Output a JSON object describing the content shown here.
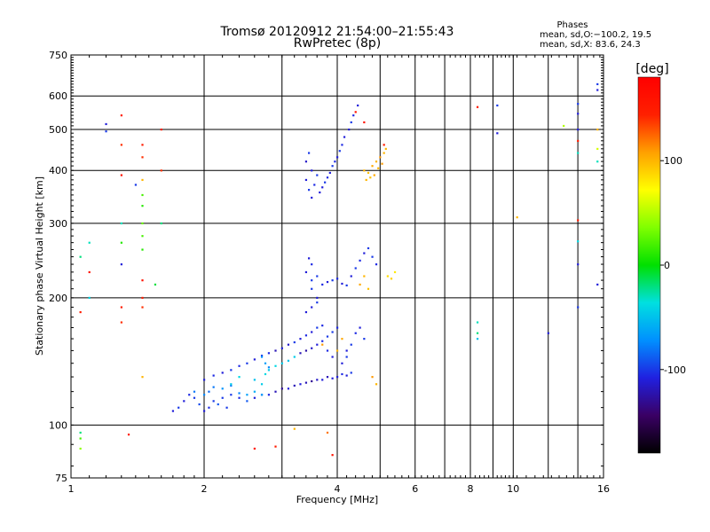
{
  "chart_data": {
    "type": "scatter",
    "title": "Tromsø 20120912 21:54:00–21:55:43",
    "subtitle": "RwPretec (8p)",
    "stats": {
      "heading": "Phases",
      "line1": "mean, sd,O:−100.2, 19.5",
      "line2": "mean, sd,X:  83.6, 24.3"
    },
    "xlabel": "Frequency [MHz]",
    "ylabel": "Stationary phase Virtual Height [km]",
    "x_scale": "log",
    "y_scale": "log",
    "xlim": [
      1,
      16
    ],
    "ylim": [
      75,
      750
    ],
    "x_ticks": [
      1,
      2,
      4,
      6,
      8,
      10,
      16
    ],
    "x_minor_ticks": [
      3,
      5,
      7,
      9,
      12,
      14
    ],
    "y_ticks": [
      75,
      100,
      200,
      300,
      400,
      500,
      600,
      750
    ],
    "grid": true,
    "colorbar": {
      "label": "[deg]",
      "min": -180,
      "max": 180,
      "ticks": [
        100,
        0,
        -100
      ],
      "colors": [
        "#000000",
        "#3a0064",
        "#2020e0",
        "#0090ff",
        "#00e0e0",
        "#00e000",
        "#80ff00",
        "#ffff00",
        "#ffa000",
        "#ff2000",
        "#ff0000"
      ]
    },
    "series": [
      {
        "points": [
          [
            1.7,
            108,
            -110
          ],
          [
            1.75,
            110,
            -100
          ],
          [
            1.8,
            114,
            -110
          ],
          [
            1.85,
            118,
            -105
          ],
          [
            1.9,
            116,
            -100
          ],
          [
            1.95,
            112,
            -95
          ],
          [
            2.0,
            108,
            -110
          ],
          [
            2.05,
            110,
            -105
          ],
          [
            2.1,
            114,
            -100
          ],
          [
            2.15,
            112,
            -90
          ],
          [
            2.2,
            116,
            -100
          ],
          [
            2.25,
            110,
            -100
          ],
          [
            2.3,
            118,
            -100
          ],
          [
            2.4,
            116,
            -105
          ],
          [
            2.5,
            114,
            -90
          ],
          [
            2.6,
            116,
            -110
          ],
          [
            2.7,
            118,
            -100
          ],
          [
            2.8,
            118,
            -105
          ],
          [
            2.9,
            120,
            -120
          ],
          [
            3.0,
            122,
            -130
          ],
          [
            3.1,
            122,
            -110
          ],
          [
            3.2,
            124,
            -120
          ],
          [
            3.3,
            125,
            -110
          ],
          [
            3.4,
            126,
            -120
          ],
          [
            3.5,
            127,
            -130
          ],
          [
            3.6,
            128,
            -115
          ],
          [
            3.7,
            128,
            -110
          ],
          [
            3.8,
            130,
            -120
          ],
          [
            3.9,
            129,
            -110
          ],
          [
            4.0,
            130,
            -110
          ],
          [
            4.1,
            132,
            -105
          ],
          [
            4.2,
            131,
            -110
          ],
          [
            4.3,
            133,
            -100
          ],
          [
            1.9,
            120,
            -80
          ],
          [
            2.0,
            118,
            -75
          ],
          [
            2.05,
            120,
            -85
          ],
          [
            2.1,
            123,
            -80
          ],
          [
            2.2,
            122,
            -70
          ],
          [
            2.3,
            124,
            -80
          ],
          [
            2.4,
            119,
            -75
          ],
          [
            2.5,
            118,
            -65
          ],
          [
            2.6,
            120,
            -60
          ],
          [
            2.7,
            118,
            -65
          ],
          [
            2.0,
            128,
            -110
          ],
          [
            2.1,
            131,
            -105
          ],
          [
            2.2,
            133,
            -110
          ],
          [
            2.3,
            135,
            -100
          ],
          [
            2.4,
            138,
            -105
          ],
          [
            2.5,
            140,
            -100
          ],
          [
            2.6,
            143,
            -110
          ],
          [
            2.7,
            146,
            -100
          ],
          [
            2.8,
            148,
            -105
          ],
          [
            2.9,
            150,
            -120
          ],
          [
            3.0,
            152,
            -110
          ],
          [
            3.1,
            155,
            -115
          ],
          [
            3.2,
            157,
            -100
          ],
          [
            3.3,
            160,
            -110
          ],
          [
            3.4,
            163,
            -105
          ],
          [
            3.5,
            166,
            -110
          ],
          [
            3.6,
            170,
            -100
          ],
          [
            3.7,
            172,
            -105
          ],
          [
            2.7,
            145,
            -70
          ],
          [
            2.75,
            140,
            -65
          ],
          [
            2.8,
            137,
            -75
          ],
          [
            3.3,
            148,
            -120
          ],
          [
            3.4,
            150,
            -125
          ],
          [
            3.5,
            152,
            -115
          ],
          [
            3.6,
            155,
            -110
          ],
          [
            3.7,
            158,
            -105
          ],
          [
            3.8,
            162,
            -100
          ],
          [
            3.9,
            166,
            -100
          ],
          [
            4.0,
            170,
            -105
          ],
          [
            3.4,
            185,
            -110
          ],
          [
            3.5,
            190,
            -110
          ],
          [
            3.6,
            195,
            -100
          ],
          [
            3.6,
            200,
            -110
          ],
          [
            3.5,
            210,
            -100
          ],
          [
            3.5,
            220,
            -100
          ],
          [
            3.4,
            230,
            -110
          ],
          [
            3.5,
            240,
            -105
          ],
          [
            3.45,
            248,
            -110
          ],
          [
            3.6,
            225,
            -100
          ],
          [
            3.7,
            215,
            -105
          ],
          [
            3.8,
            218,
            -110
          ],
          [
            3.9,
            220,
            -100
          ],
          [
            4.0,
            222,
            -105
          ],
          [
            4.1,
            216,
            -110
          ],
          [
            4.2,
            214,
            -100
          ],
          [
            4.3,
            225,
            -110
          ],
          [
            4.4,
            235,
            -100
          ],
          [
            4.5,
            245,
            -105
          ],
          [
            4.6,
            255,
            -110
          ],
          [
            4.7,
            262,
            -100
          ],
          [
            4.8,
            250,
            -100
          ],
          [
            4.9,
            240,
            -105
          ],
          [
            4.2,
            150,
            -110
          ],
          [
            4.3,
            155,
            -100
          ],
          [
            4.4,
            165,
            -105
          ],
          [
            4.5,
            170,
            -110
          ],
          [
            4.6,
            160,
            -100
          ],
          [
            4.1,
            140,
            -110
          ],
          [
            4.2,
            145,
            -100
          ],
          [
            3.9,
            145,
            -110
          ],
          [
            3.8,
            150,
            -105
          ],
          [
            3.4,
            380,
            -110
          ],
          [
            3.45,
            360,
            -100
          ],
          [
            3.5,
            345,
            -110
          ],
          [
            3.55,
            370,
            -105
          ],
          [
            3.6,
            390,
            -100
          ],
          [
            3.65,
            355,
            -110
          ],
          [
            3.7,
            365,
            -110
          ],
          [
            3.75,
            375,
            -100
          ],
          [
            3.8,
            385,
            -105
          ],
          [
            3.85,
            395,
            -110
          ],
          [
            3.9,
            410,
            -100
          ],
          [
            3.95,
            420,
            -105
          ],
          [
            4.0,
            430,
            -110
          ],
          [
            4.05,
            445,
            -100
          ],
          [
            4.1,
            460,
            -105
          ],
          [
            4.15,
            480,
            -110
          ],
          [
            4.25,
            500,
            -110
          ],
          [
            4.3,
            520,
            -100
          ],
          [
            4.35,
            540,
            -105
          ],
          [
            4.45,
            570,
            -110
          ],
          [
            3.4,
            420,
            -115
          ],
          [
            3.45,
            440,
            -100
          ],
          [
            3.5,
            400,
            -110
          ],
          [
            4.6,
            400,
            100
          ],
          [
            4.7,
            395,
            95
          ],
          [
            4.8,
            410,
            105
          ],
          [
            4.9,
            420,
            100
          ],
          [
            5.0,
            430,
            110
          ],
          [
            5.1,
            440,
            100
          ],
          [
            4.65,
            380,
            100
          ],
          [
            4.75,
            385,
            95
          ],
          [
            4.85,
            390,
            105
          ],
          [
            4.95,
            405,
            100
          ],
          [
            5.05,
            415,
            110
          ],
          [
            5.15,
            450,
            100
          ],
          [
            4.5,
            215,
            105
          ],
          [
            4.6,
            225,
            100
          ],
          [
            4.7,
            210,
            95
          ],
          [
            5.2,
            225,
            85
          ],
          [
            5.3,
            222,
            90
          ],
          [
            5.4,
            230,
            80
          ],
          [
            4.0,
            150,
            100
          ],
          [
            4.1,
            160,
            105
          ],
          [
            4.8,
            130,
            110
          ],
          [
            4.9,
            125,
            100
          ],
          [
            3.7,
            155,
            110
          ],
          [
            2.3,
            125,
            -45
          ],
          [
            2.4,
            130,
            -40
          ],
          [
            2.6,
            128,
            -50
          ],
          [
            2.7,
            125,
            -45
          ],
          [
            2.75,
            132,
            -40
          ],
          [
            2.8,
            135,
            -45
          ],
          [
            2.9,
            138,
            -40
          ],
          [
            3.0,
            140,
            -45
          ],
          [
            3.1,
            142,
            -50
          ],
          [
            3.2,
            145,
            -45
          ],
          [
            1.05,
            88,
            40
          ],
          [
            1.05,
            93,
            20
          ],
          [
            1.05,
            96,
            -20
          ],
          [
            1.05,
            185,
            150
          ],
          [
            1.1,
            230,
            160
          ],
          [
            1.1,
            200,
            -40
          ],
          [
            1.05,
            250,
            -20
          ],
          [
            1.1,
            270,
            -30
          ],
          [
            1.2,
            495,
            -100
          ],
          [
            1.2,
            515,
            -110
          ],
          [
            1.3,
            540,
            150
          ],
          [
            1.3,
            460,
            140
          ],
          [
            1.3,
            390,
            160
          ],
          [
            1.3,
            300,
            -30
          ],
          [
            1.3,
            270,
            10
          ],
          [
            1.3,
            240,
            -110
          ],
          [
            1.3,
            190,
            150
          ],
          [
            1.3,
            175,
            140
          ],
          [
            1.4,
            370,
            -100
          ],
          [
            1.45,
            460,
            150
          ],
          [
            1.45,
            430,
            140
          ],
          [
            1.45,
            380,
            100
          ],
          [
            1.45,
            350,
            20
          ],
          [
            1.45,
            330,
            10
          ],
          [
            1.45,
            300,
            30
          ],
          [
            1.45,
            280,
            20
          ],
          [
            1.45,
            260,
            10
          ],
          [
            1.45,
            220,
            160
          ],
          [
            1.45,
            200,
            150
          ],
          [
            1.45,
            190,
            140
          ],
          [
            1.45,
            130,
            100
          ],
          [
            1.55,
            215,
            -10
          ],
          [
            1.6,
            500,
            150
          ],
          [
            1.6,
            400,
            140
          ],
          [
            1.6,
            300,
            -20
          ],
          [
            1.35,
            95,
            150
          ],
          [
            2.6,
            88,
            160
          ],
          [
            2.9,
            89,
            150
          ],
          [
            3.2,
            98,
            100
          ],
          [
            3.8,
            96,
            120
          ],
          [
            3.9,
            85,
            160
          ],
          [
            4.4,
            550,
            160
          ],
          [
            4.6,
            520,
            160
          ],
          [
            5.1,
            460,
            150
          ],
          [
            8.3,
            565,
            150
          ],
          [
            9.2,
            570,
            -100
          ],
          [
            9.2,
            490,
            -110
          ],
          [
            8.3,
            175,
            -30
          ],
          [
            8.3,
            165,
            -20
          ],
          [
            8.3,
            160,
            -50
          ],
          [
            10.2,
            310,
            100
          ],
          [
            12.0,
            165,
            -110
          ],
          [
            13.0,
            510,
            50
          ],
          [
            14.0,
            575,
            -100
          ],
          [
            14.0,
            545,
            -110
          ],
          [
            14.0,
            500,
            -110
          ],
          [
            14.0,
            470,
            150
          ],
          [
            14.0,
            440,
            -30
          ],
          [
            14.0,
            305,
            150
          ],
          [
            14.0,
            272,
            -40
          ],
          [
            14.0,
            240,
            -110
          ],
          [
            14.0,
            190,
            -100
          ],
          [
            15.5,
            620,
            -110
          ],
          [
            15.5,
            640,
            -100
          ],
          [
            15.5,
            500,
            100
          ],
          [
            15.5,
            450,
            60
          ],
          [
            15.5,
            420,
            -30
          ],
          [
            15.5,
            215,
            -110
          ]
        ]
      }
    ]
  }
}
